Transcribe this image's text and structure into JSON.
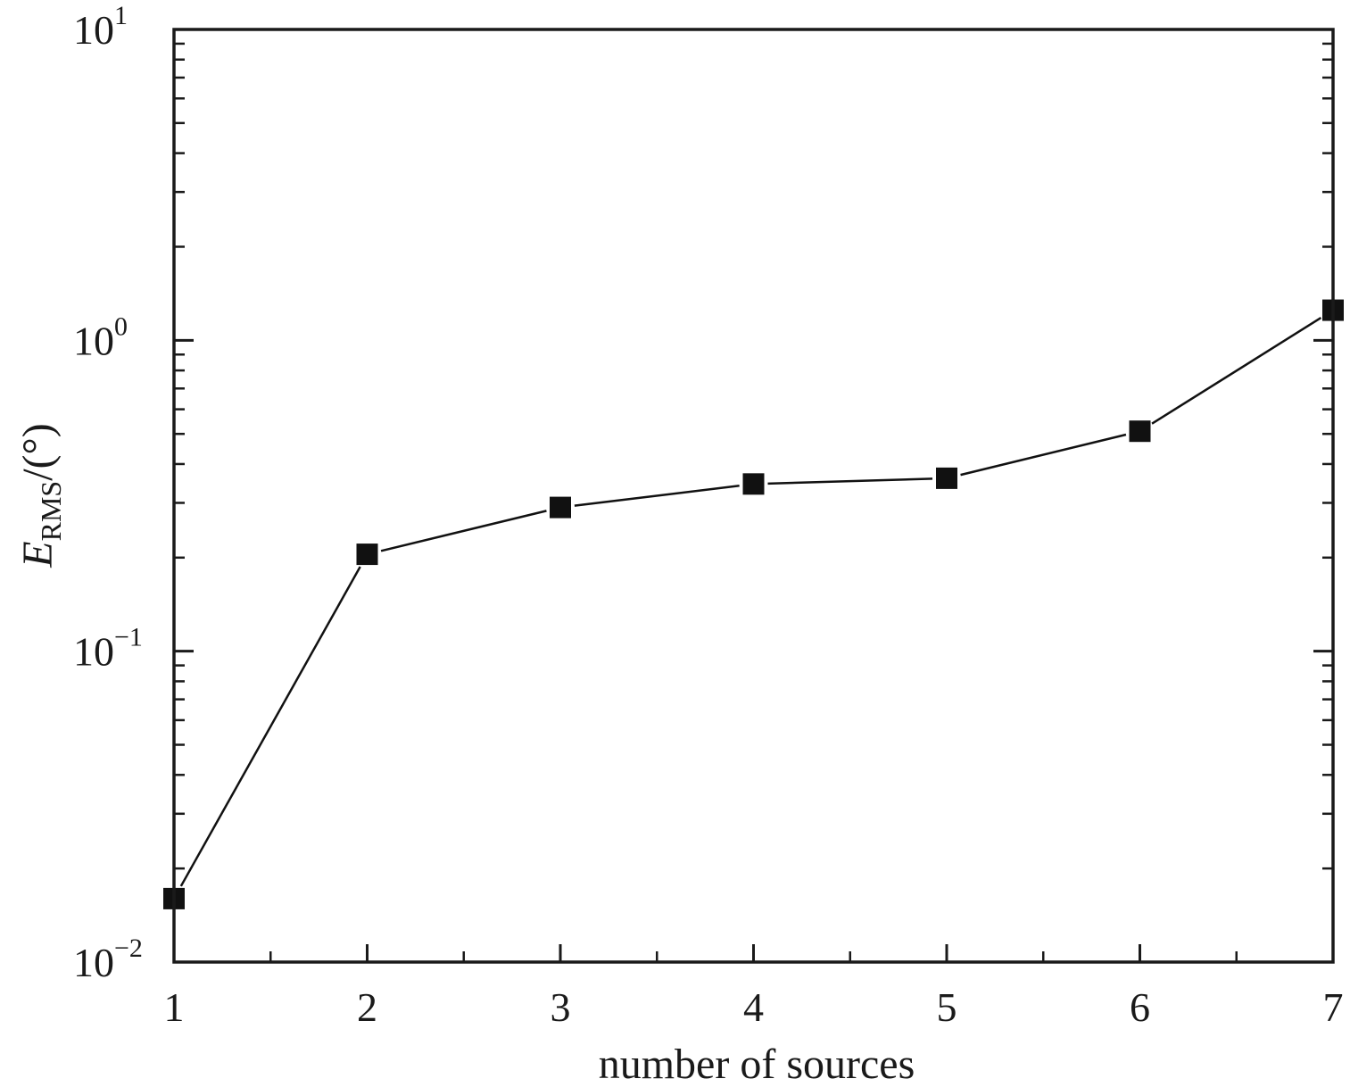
{
  "chart_data": {
    "type": "line",
    "title": "",
    "xlabel": "number of sources",
    "ylabel": {
      "main": "E",
      "subscript": "RMS",
      "unit": "/(°)"
    },
    "yscale": "log",
    "xlim": [
      1,
      7
    ],
    "ylim": [
      0.01,
      10
    ],
    "grid": false,
    "x_ticks": [
      "1",
      "2",
      "3",
      "4",
      "5",
      "6",
      "7"
    ],
    "y_ticks": [
      {
        "base": "10",
        "exp": "−2",
        "value": 0.01
      },
      {
        "base": "10",
        "exp": "−1",
        "value": 0.1
      },
      {
        "base": "10",
        "exp": "0",
        "value": 1
      },
      {
        "base": "10",
        "exp": "1",
        "value": 10
      }
    ],
    "series": [
      {
        "marker": "square",
        "color": "#111111",
        "x": [
          1,
          2,
          3,
          4,
          5,
          6,
          7
        ],
        "y": [
          0.016,
          0.205,
          0.29,
          0.345,
          0.36,
          0.51,
          1.25
        ]
      }
    ]
  }
}
